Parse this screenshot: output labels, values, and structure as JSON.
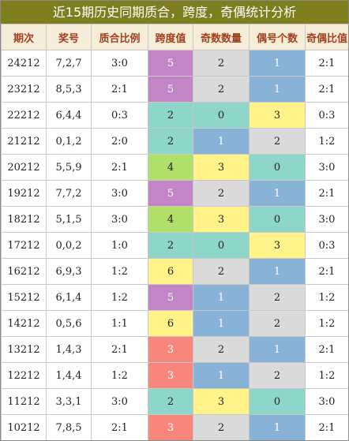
{
  "title": "近15期历史同期质合，跨度，奇偶统计分析",
  "columns": [
    "期次",
    "奖号",
    "质合比例",
    "跨度值",
    "奇数数量",
    "偶号个数",
    "奇偶比值"
  ],
  "colors": {
    "header_bg": "#f6edd9",
    "header_text": "#a0401e",
    "title_bg": "#7e7e1e",
    "purple": "#c286c6",
    "teal": "#8dd6c9",
    "green": "#b0df6a",
    "yellow": "#fff38a",
    "blue": "#89b3d6",
    "gray": "#dadada",
    "salmon": "#f7877c"
  },
  "rows": [
    {
      "period": "24212",
      "number": "7,2,7",
      "prime_ratio": "3:0",
      "span": "5",
      "span_color": "purple",
      "odd_count": "2",
      "odd_color": "gray",
      "even_count": "1",
      "even_color": "blue",
      "odd_even_ratio": "2:1"
    },
    {
      "period": "23212",
      "number": "8,5,3",
      "prime_ratio": "2:1",
      "span": "5",
      "span_color": "purple",
      "odd_count": "2",
      "odd_color": "gray",
      "even_count": "1",
      "even_color": "blue",
      "odd_even_ratio": "2:1"
    },
    {
      "period": "22212",
      "number": "6,4,4",
      "prime_ratio": "0:3",
      "span": "2",
      "span_color": "teal",
      "odd_count": "0",
      "odd_color": "teal",
      "even_count": "3",
      "even_color": "yellow",
      "odd_even_ratio": "0:3"
    },
    {
      "period": "21212",
      "number": "0,1,2",
      "prime_ratio": "2:0",
      "span": "2",
      "span_color": "teal",
      "odd_count": "1",
      "odd_color": "blue",
      "even_count": "2",
      "even_color": "gray",
      "odd_even_ratio": "1:2"
    },
    {
      "period": "20212",
      "number": "5,5,9",
      "prime_ratio": "2:1",
      "span": "4",
      "span_color": "green",
      "odd_count": "3",
      "odd_color": "yellow",
      "even_count": "0",
      "even_color": "teal",
      "odd_even_ratio": "3:0"
    },
    {
      "period": "19212",
      "number": "7,7,2",
      "prime_ratio": "3:0",
      "span": "5",
      "span_color": "purple",
      "odd_count": "2",
      "odd_color": "gray",
      "even_count": "1",
      "even_color": "blue",
      "odd_even_ratio": "2:1"
    },
    {
      "period": "18212",
      "number": "5,1,5",
      "prime_ratio": "3:0",
      "span": "4",
      "span_color": "green",
      "odd_count": "3",
      "odd_color": "yellow",
      "even_count": "0",
      "even_color": "teal",
      "odd_even_ratio": "3:0"
    },
    {
      "period": "17212",
      "number": "0,0,2",
      "prime_ratio": "1:0",
      "span": "2",
      "span_color": "teal",
      "odd_count": "0",
      "odd_color": "teal",
      "even_count": "3",
      "even_color": "yellow",
      "odd_even_ratio": "0:3"
    },
    {
      "period": "16212",
      "number": "6,9,3",
      "prime_ratio": "1:2",
      "span": "6",
      "span_color": "yellow",
      "odd_count": "2",
      "odd_color": "gray",
      "even_count": "1",
      "even_color": "blue",
      "odd_even_ratio": "2:1"
    },
    {
      "period": "15212",
      "number": "6,1,4",
      "prime_ratio": "1:2",
      "span": "5",
      "span_color": "purple",
      "odd_count": "1",
      "odd_color": "blue",
      "even_count": "2",
      "even_color": "gray",
      "odd_even_ratio": "1:2"
    },
    {
      "period": "14212",
      "number": "0,5,6",
      "prime_ratio": "1:1",
      "span": "6",
      "span_color": "yellow",
      "odd_count": "1",
      "odd_color": "blue",
      "even_count": "2",
      "even_color": "gray",
      "odd_even_ratio": "1:2"
    },
    {
      "period": "13212",
      "number": "1,4,3",
      "prime_ratio": "2:1",
      "span": "3",
      "span_color": "salmon",
      "odd_count": "2",
      "odd_color": "gray",
      "even_count": "1",
      "even_color": "blue",
      "odd_even_ratio": "2:1"
    },
    {
      "period": "12212",
      "number": "1,4,4",
      "prime_ratio": "1:2",
      "span": "3",
      "span_color": "salmon",
      "odd_count": "1",
      "odd_color": "blue",
      "even_count": "2",
      "even_color": "gray",
      "odd_even_ratio": "1:2"
    },
    {
      "period": "11212",
      "number": "3,3,1",
      "prime_ratio": "3:0",
      "span": "2",
      "span_color": "teal",
      "odd_count": "3",
      "odd_color": "yellow",
      "even_count": "0",
      "even_color": "teal",
      "odd_even_ratio": "3:0"
    },
    {
      "period": "10212",
      "number": "7,8,5",
      "prime_ratio": "2:1",
      "span": "3",
      "span_color": "salmon",
      "odd_count": "2",
      "odd_color": "gray",
      "even_count": "1",
      "even_color": "blue",
      "odd_even_ratio": "2:1"
    }
  ]
}
